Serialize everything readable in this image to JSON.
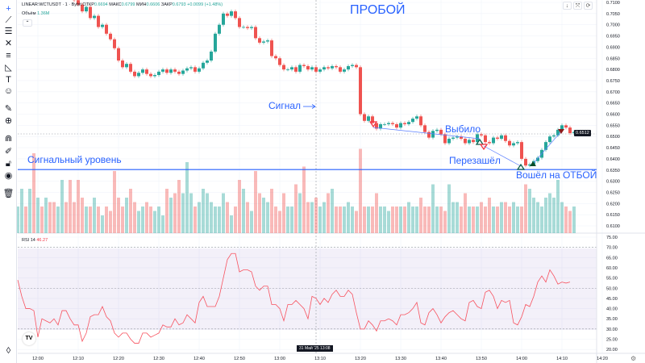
{
  "header": {
    "symbol": "LINEAR:WCTUSDT · 1 · Bybit",
    "open_label": "ОТКР",
    "open": "0.6694",
    "high_label": "МАКС",
    "high": "0.6799",
    "low_label": "МИН",
    "low": "0.6606",
    "close_label": "ЗАКР",
    "close": "0.6793",
    "change": "+0.0099 (+1.48%)"
  },
  "volume": {
    "label": "Объём",
    "value": "1.36M"
  },
  "rsi": {
    "label": "RSI 14",
    "value": "46.27"
  },
  "annotations": {
    "breakout": "ПРОБОЙ",
    "signal": "Сигнал",
    "signal_level": "Сигнальный уровень",
    "knocked_out": "Выбило",
    "reentered": "Перезашёл",
    "entered_rebound": "Вошёл на ОТБОЙ"
  },
  "price_label": "0.6512",
  "crosshair_label": "31 Май '25  13:08",
  "toolbar": [
    "crosshair-icon",
    "trend-line-icon",
    "fib-icon",
    "pattern-icon",
    "projection-icon",
    "measure-icon",
    "text-icon",
    "emoji-icon",
    "ruler-icon",
    "zoom-in-icon",
    "magnet-icon",
    "lock-drawing-icon",
    "unlock-icon",
    "eye-icon",
    "trash-icon"
  ],
  "colors": {
    "up": "#26a69a",
    "down": "#ef5350",
    "annotation": "#2962ff",
    "rsi": "#f7525f",
    "rsi_band": "#7e57c2"
  },
  "chart_data": {
    "type": "candlestick",
    "price_axis": [
      "0.7100",
      "0.7050",
      "0.7000",
      "0.6950",
      "0.6900",
      "0.6850",
      "0.6800",
      "0.6750",
      "0.6700",
      "0.6650",
      "0.6600",
      "0.6550",
      "0.6500",
      "0.6450",
      "0.6400",
      "0.6350",
      "0.6300",
      "0.6250",
      "0.6200",
      "0.6150",
      "0.6100"
    ],
    "ylim": [
      0.61,
      0.71
    ],
    "rsi_axis": [
      "75.00",
      "70.00",
      "65.00",
      "60.00",
      "55.00",
      "50.00",
      "45.00",
      "40.00",
      "35.00",
      "30.00",
      "25.00",
      "20.00"
    ],
    "rsi_lim": [
      20,
      75
    ],
    "rsi_bands": [
      30,
      50,
      70
    ],
    "time_axis": [
      "12:00",
      "12:10",
      "12:20",
      "12:30",
      "12:40",
      "12:50",
      "13:00",
      "13:10",
      "13:20",
      "13:30",
      "13:40",
      "13:50",
      "14:00",
      "14:10",
      "14:20"
    ],
    "signal_level": 0.6352,
    "closes": [
      0.713,
      0.714,
      0.7125,
      0.715,
      0.7135,
      0.7145,
      0.713,
      0.715,
      0.714,
      0.7125,
      0.7135,
      0.7145,
      0.713,
      0.712,
      0.711,
      0.709,
      0.706,
      0.708,
      0.703,
      0.704,
      0.699,
      0.7,
      0.696,
      0.6935,
      0.6895,
      0.684,
      0.681,
      0.6825,
      0.679,
      0.677,
      0.6785,
      0.68,
      0.678,
      0.677,
      0.6775,
      0.679,
      0.68,
      0.6785,
      0.68,
      0.679,
      0.678,
      0.6795,
      0.6805,
      0.681,
      0.679,
      0.6805,
      0.683,
      0.684,
      0.688,
      0.696,
      0.7,
      0.705,
      0.704,
      0.706,
      0.703,
      0.699,
      0.699,
      0.6985,
      0.699,
      0.694,
      0.692,
      0.6925,
      0.693,
      0.686,
      0.685,
      0.682,
      0.68,
      0.68,
      0.681,
      0.679,
      0.682,
      0.6815,
      0.68,
      0.681,
      0.679,
      0.68,
      0.681,
      0.6805,
      0.6815,
      0.681,
      0.679,
      0.68,
      0.6815,
      0.682,
      0.681,
      0.66,
      0.657,
      0.659,
      0.656,
      0.6535,
      0.6555,
      0.6555,
      0.656,
      0.6555,
      0.654,
      0.656,
      0.6555,
      0.6565,
      0.658,
      0.659,
      0.655,
      0.652,
      0.6495,
      0.6525,
      0.653,
      0.651,
      0.647,
      0.649,
      0.6495,
      0.65,
      0.649,
      0.647,
      0.6485,
      0.6475,
      0.651,
      0.6505,
      0.6475,
      0.647,
      0.6495,
      0.649,
      0.6505,
      0.648,
      0.646,
      0.647,
      0.6475,
      0.64,
      0.637,
      0.6375,
      0.639,
      0.6405,
      0.644,
      0.6475,
      0.65,
      0.6505,
      0.653,
      0.655,
      0.654,
      0.6515,
      0.652
    ],
    "volumes": [
      0.3,
      0.5,
      0.3,
      0.5,
      0.9,
      0.4,
      0.3,
      0.4,
      0.35,
      0.35,
      0.3,
      0.6,
      0.35,
      0.6,
      0.35,
      0.6,
      0.4,
      0.3,
      0.3,
      0.4,
      0.3,
      0.2,
      0.3,
      0.25,
      0.7,
      0.4,
      0.3,
      0.4,
      0.5,
      0.35,
      0.25,
      0.3,
      0.35,
      0.3,
      0.25,
      0.3,
      0.2,
      0.5,
      0.4,
      0.45,
      0.6,
      0.45,
      0.8,
      0.45,
      0.3,
      0.35,
      0.5,
      0.45,
      0.35,
      0.3,
      0.3,
      0.45,
      0.35,
      0.2,
      0.3,
      0.6,
      0.5,
      0.35,
      0.25,
      0.7,
      0.45,
      0.4,
      0.35,
      0.5,
      0.3,
      0.25,
      0.45,
      0.3,
      0.3,
      0.55,
      0.45,
      0.75,
      0.35,
      0.35,
      0.4,
      0.3,
      0.35,
      0.45,
      0.5,
      0.3,
      0.3,
      0.3,
      0.35,
      0.3,
      0.25,
      0.95,
      0.3,
      0.3,
      0.3,
      0.45,
      0.3,
      0.3,
      0.25,
      0.3,
      0.3,
      0.3,
      0.3,
      0.35,
      0.3,
      0.3,
      0.4,
      0.3,
      0.3,
      0.55,
      0.3,
      0.3,
      0.25,
      0.55,
      0.35,
      0.35,
      0.3,
      0.45,
      0.3,
      0.3,
      0.3,
      0.35,
      0.3,
      0.4,
      0.3,
      0.3,
      0.35,
      0.35,
      0.3,
      0.35,
      0.3,
      0.3,
      0.55,
      0.5,
      0.4,
      0.35,
      0.3,
      0.4,
      0.45,
      0.4,
      0.6,
      0.35,
      0.3,
      0.25
    ],
    "rsi_values": [
      54,
      46,
      40,
      40,
      39,
      26,
      35,
      34,
      33,
      35,
      32,
      39,
      39,
      35,
      32,
      32,
      24,
      28,
      36,
      37,
      37,
      41,
      36,
      34,
      28,
      26,
      28,
      28,
      25,
      23,
      23,
      28,
      28,
      26,
      27,
      28,
      32,
      31,
      31,
      35,
      32,
      33,
      37,
      35,
      33,
      43,
      46,
      41,
      41,
      41,
      46,
      55,
      64,
      67,
      67,
      58,
      59,
      59,
      58,
      51,
      49,
      51,
      51,
      42,
      42,
      40,
      34,
      42,
      42,
      44,
      42,
      40,
      35,
      46,
      45,
      42,
      45,
      43,
      47,
      49,
      46,
      46,
      49,
      47,
      38,
      30,
      30,
      34,
      32,
      29,
      34,
      34,
      35,
      34,
      32,
      37,
      37,
      38,
      40,
      43,
      33,
      32,
      38,
      40,
      37,
      33,
      36,
      38,
      39,
      37,
      35,
      34,
      43,
      44,
      41,
      40,
      48,
      49,
      46,
      40,
      44,
      43,
      44,
      33,
      32,
      36,
      42,
      41,
      46,
      53,
      56,
      53,
      59,
      56,
      52,
      53,
      52.5,
      53
    ]
  }
}
